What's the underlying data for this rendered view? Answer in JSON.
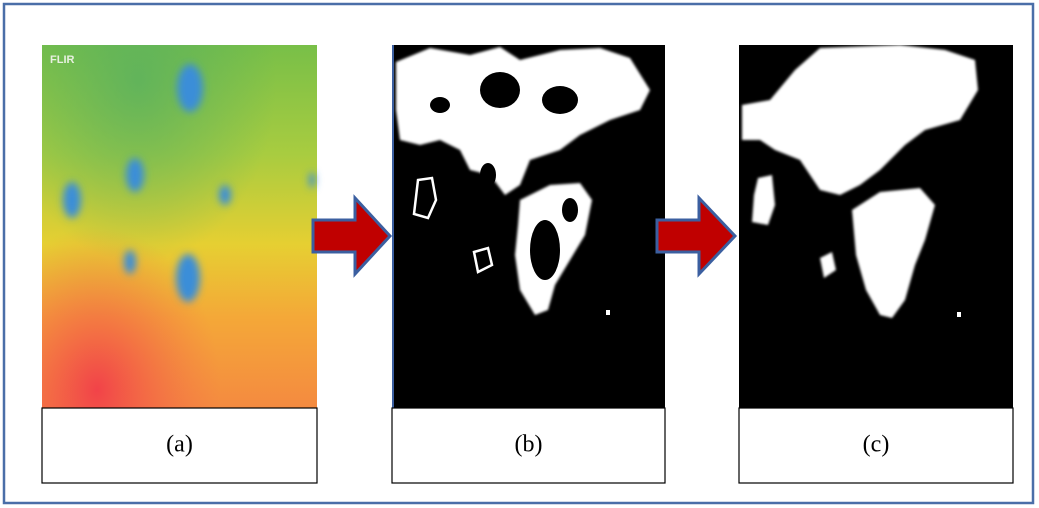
{
  "logo": "FLIR",
  "panels": [
    {
      "label": "(a)"
    },
    {
      "label": "(b)"
    },
    {
      "label": "(c)"
    }
  ]
}
